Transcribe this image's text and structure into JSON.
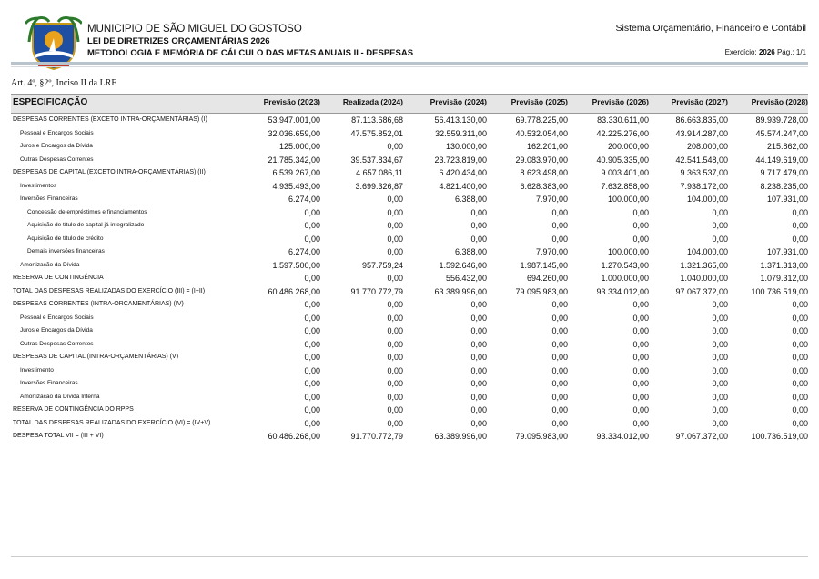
{
  "header": {
    "municipality": "MUNICIPIO DE SÃO MIGUEL DO GOSTOSO",
    "law": "LEI DE DIRETRIZES ORÇAMENTÁRIAS 2026",
    "subtitle": "METODOLOGIA E MEMÓRIA DE CÁLCULO DAS METAS ANUAIS II - DESPESAS",
    "system": "Sistema Orçamentário, Financeiro e Contábil",
    "exercise_label": "Exercício:",
    "exercise": "2026",
    "page": "Pág.: 1/1"
  },
  "legal_basis": "Art. 4º, §2º, Inciso II da LRF",
  "table": {
    "columns": [
      "ESPECIFICAÇÃO",
      "Previsão  (2023)",
      "Realizada (2024)",
      "Previsão (2024)",
      "Previsão (2025)",
      "Previsão (2026)",
      "Previsão (2027)",
      "Previsão (2028)"
    ],
    "rows": [
      [
        "DESPESAS CORRENTES (EXCETO INTRA-ORÇAMENTÁRIAS) (I)",
        "53.947.001,00",
        "87.113.686,68",
        "56.413.130,00",
        "69.778.225,00",
        "83.330.611,00",
        "86.663.835,00",
        "89.939.728,00"
      ],
      [
        "Pessoal e Encargos Sociais",
        "32.036.659,00",
        "47.575.852,01",
        "32.559.311,00",
        "40.532.054,00",
        "42.225.276,00",
        "43.914.287,00",
        "45.574.247,00"
      ],
      [
        "Juros e Encargos da Dívida",
        "125.000,00",
        "0,00",
        "130.000,00",
        "162.201,00",
        "200.000,00",
        "208.000,00",
        "215.862,00"
      ],
      [
        "Outras Despesas Correntes",
        "21.785.342,00",
        "39.537.834,67",
        "23.723.819,00",
        "29.083.970,00",
        "40.905.335,00",
        "42.541.548,00",
        "44.149.619,00"
      ],
      [
        "DESPESAS DE CAPITAL (EXCETO INTRA-ORÇAMENTÁRIAS) (II)",
        "6.539.267,00",
        "4.657.086,11",
        "6.420.434,00",
        "8.623.498,00",
        "9.003.401,00",
        "9.363.537,00",
        "9.717.479,00"
      ],
      [
        "Investimentos",
        "4.935.493,00",
        "3.699.326,87",
        "4.821.400,00",
        "6.628.383,00",
        "7.632.858,00",
        "7.938.172,00",
        "8.238.235,00"
      ],
      [
        "Inversões Financeiras",
        "6.274,00",
        "0,00",
        "6.388,00",
        "7.970,00",
        "100.000,00",
        "104.000,00",
        "107.931,00"
      ],
      [
        "Concessão de empréstimos e financiamentos",
        "0,00",
        "0,00",
        "0,00",
        "0,00",
        "0,00",
        "0,00",
        "0,00"
      ],
      [
        "Aquisição de título de capital já integralizado",
        "0,00",
        "0,00",
        "0,00",
        "0,00",
        "0,00",
        "0,00",
        "0,00"
      ],
      [
        "Aquisição de título de crédito",
        "0,00",
        "0,00",
        "0,00",
        "0,00",
        "0,00",
        "0,00",
        "0,00"
      ],
      [
        "Demais inversões financeiras",
        "6.274,00",
        "0,00",
        "6.388,00",
        "7.970,00",
        "100.000,00",
        "104.000,00",
        "107.931,00"
      ],
      [
        "Amortização da Dívida",
        "1.597.500,00",
        "957.759,24",
        "1.592.646,00",
        "1.987.145,00",
        "1.270.543,00",
        "1.321.365,00",
        "1.371.313,00"
      ],
      [
        "RESERVA DE CONTINGÊNCIA",
        "0,00",
        "0,00",
        "556.432,00",
        "694.260,00",
        "1.000.000,00",
        "1.040.000,00",
        "1.079.312,00"
      ],
      [
        "TOTAL DAS DESPESAS REALIZADAS DO EXERCÍCIO (III) = (I+II)",
        "60.486.268,00",
        "91.770.772,79",
        "63.389.996,00",
        "79.095.983,00",
        "93.334.012,00",
        "97.067.372,00",
        "100.736.519,00"
      ],
      [
        "DESPESAS CORRENTES (INTRA-ORÇAMENTÁRIAS) (IV)",
        "0,00",
        "0,00",
        "0,00",
        "0,00",
        "0,00",
        "0,00",
        "0,00"
      ],
      [
        "Pessoal e Encargos Sociais",
        "0,00",
        "0,00",
        "0,00",
        "0,00",
        "0,00",
        "0,00",
        "0,00"
      ],
      [
        "Juros e Encargos da Dívida",
        "0,00",
        "0,00",
        "0,00",
        "0,00",
        "0,00",
        "0,00",
        "0,00"
      ],
      [
        "Outras Despesas Correntes",
        "0,00",
        "0,00",
        "0,00",
        "0,00",
        "0,00",
        "0,00",
        "0,00"
      ],
      [
        "DESPESAS DE CAPITAL (INTRA-ORÇAMENTÁRIAS) (V)",
        "0,00",
        "0,00",
        "0,00",
        "0,00",
        "0,00",
        "0,00",
        "0,00"
      ],
      [
        "Investimento",
        "0,00",
        "0,00",
        "0,00",
        "0,00",
        "0,00",
        "0,00",
        "0,00"
      ],
      [
        "Inversões Financeiras",
        "0,00",
        "0,00",
        "0,00",
        "0,00",
        "0,00",
        "0,00",
        "0,00"
      ],
      [
        "Amortização da Dívida Interna",
        "0,00",
        "0,00",
        "0,00",
        "0,00",
        "0,00",
        "0,00",
        "0,00"
      ],
      [
        "RESERVA DE CONTINGÊNCIA DO RPPS",
        "0,00",
        "0,00",
        "0,00",
        "0,00",
        "0,00",
        "0,00",
        "0,00"
      ],
      [
        "TOTAL DAS DESPESAS REALIZADAS DO EXERCÍCIO (VI) = (IV+V)",
        "0,00",
        "0,00",
        "0,00",
        "0,00",
        "0,00",
        "0,00",
        "0,00"
      ],
      [
        "DESPESA TOTAL VII = (III + VI)",
        "60.486.268,00",
        "91.770.772,79",
        "63.389.996,00",
        "79.095.983,00",
        "93.334.012,00",
        "97.067.372,00",
        "100.736.519,00"
      ]
    ]
  }
}
